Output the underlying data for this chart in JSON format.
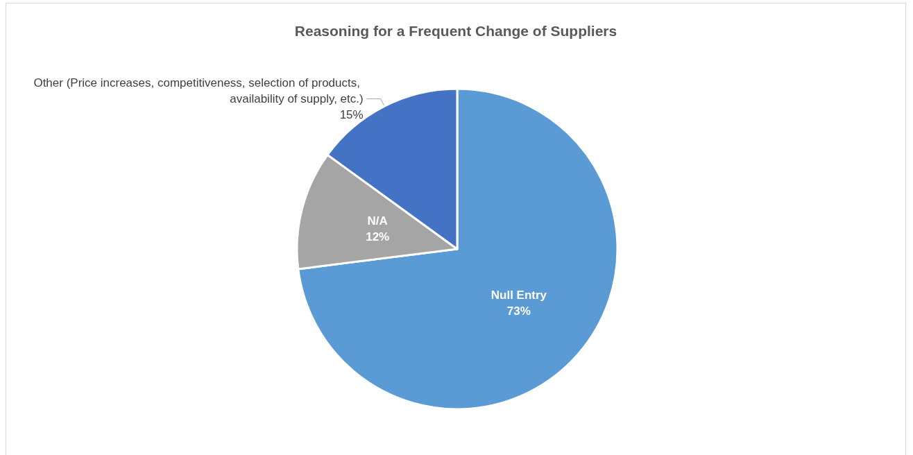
{
  "chart_data": {
    "type": "pie",
    "title": "Reasoning for a Frequent Change of Suppliers",
    "categories": [
      "Null Entry",
      "N/A",
      "Other (Price increases, competitiveness, selection of products, availability of supply, etc.)"
    ],
    "values": [
      73,
      12,
      15
    ],
    "value_labels": [
      "73%",
      "12%",
      "15%"
    ],
    "colors": [
      "#5b9bd5",
      "#a5a5a5",
      "#4472c4"
    ]
  }
}
